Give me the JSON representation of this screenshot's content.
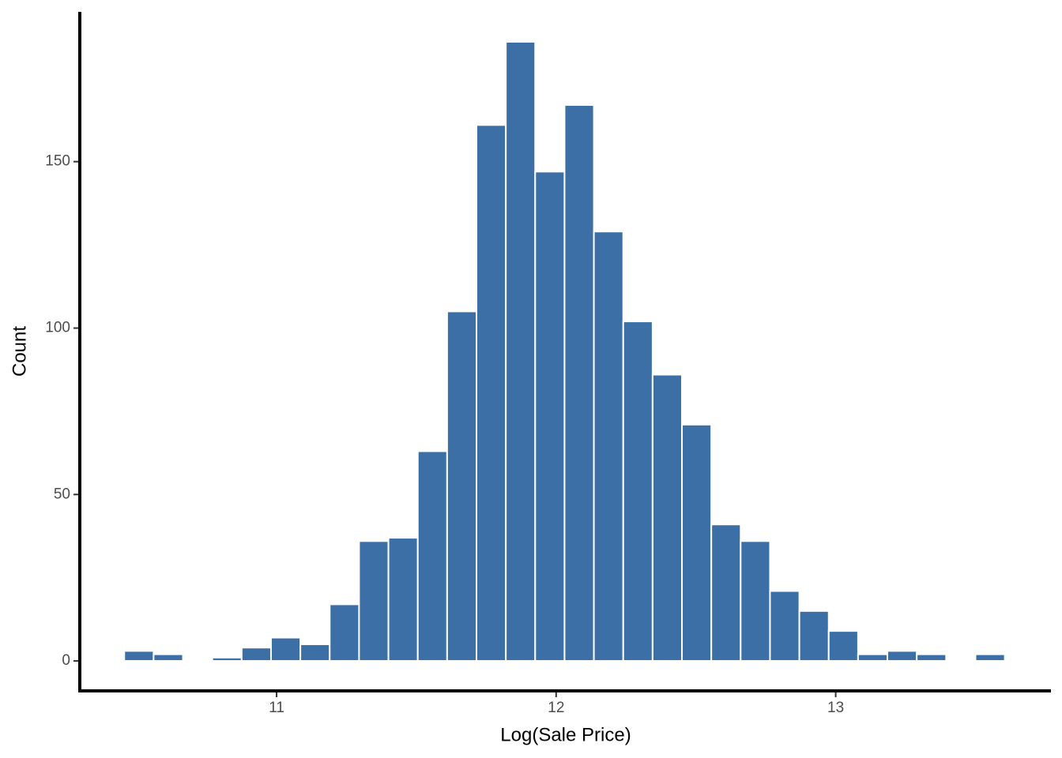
{
  "chart_data": {
    "type": "histogram",
    "x_label": "Log(Sale Price)",
    "y_label": "Count",
    "bins": [
      10.455,
      10.56,
      10.665,
      10.77,
      10.875,
      10.98,
      11.085,
      11.19,
      11.295,
      11.4,
      11.505,
      11.61,
      11.715,
      11.82,
      11.925,
      12.03,
      12.135,
      12.24,
      12.345,
      12.45,
      12.555,
      12.66,
      12.765,
      12.87,
      12.975,
      13.08,
      13.185,
      13.29,
      13.395,
      13.5,
      13.605
    ],
    "values": [
      3,
      2,
      0,
      1,
      4,
      7,
      5,
      17,
      36,
      37,
      63,
      105,
      161,
      186,
      147,
      167,
      129,
      102,
      86,
      71,
      41,
      36,
      21,
      15,
      9,
      2,
      3,
      2,
      0,
      2
    ],
    "color": "#3b6fa6",
    "xlim": [
      10.296,
      13.77
    ],
    "xticks": [
      11,
      12,
      13
    ],
    "ylim": [
      -9,
      195
    ],
    "yticks": [
      0,
      50,
      100,
      150
    ]
  }
}
